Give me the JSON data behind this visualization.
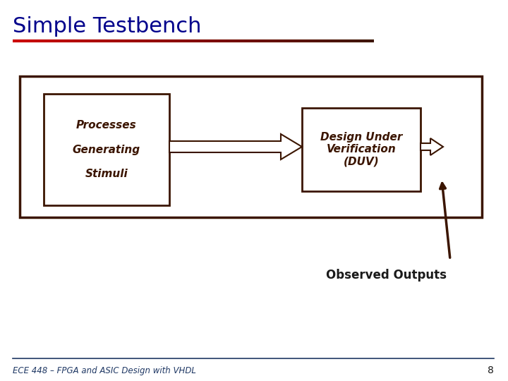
{
  "title": "Simple Testbench",
  "title_color": "#00008B",
  "title_fontsize": 22,
  "bg_color": "#FFFFFF",
  "divider_color1": "#CC0000",
  "divider_color2": "#3B1500",
  "footer_text": "ECE 448 – FPGA and ASIC Design with VHDL",
  "footer_number": "8",
  "footer_color": "#1F3864",
  "box_outer_color": "#3B1500",
  "box_inner_color": "#3B1500",
  "left_box_text": "Processes\n\nGenerating\n\nStimuli",
  "right_box_text": "Design Under\nVerification\n(DUV)",
  "observed_text": "Observed Outputs",
  "arrow_color": "#3B1500"
}
